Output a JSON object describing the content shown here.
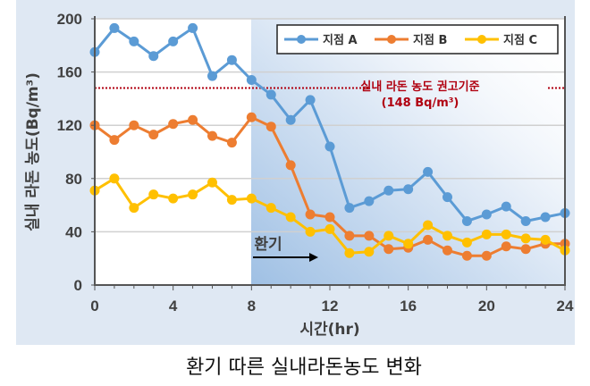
{
  "chart_data": {
    "type": "line",
    "title": "",
    "caption": "환기 따른 실내라돈농도 변화",
    "xlabel": "시간(hr)",
    "ylabel": "실내 라돈 농도(Bq/m³)",
    "xlim": [
      0,
      24
    ],
    "ylim": [
      0,
      200
    ],
    "xticks": [
      0,
      4,
      8,
      12,
      16,
      20,
      24
    ],
    "yticks": [
      0,
      40,
      80,
      120,
      160,
      200
    ],
    "grid": true,
    "legend_position": "top-right",
    "x": [
      0,
      1,
      2,
      3,
      4,
      5,
      6,
      7,
      8,
      9,
      10,
      11,
      12,
      13,
      14,
      15,
      16,
      17,
      18,
      19,
      20,
      21,
      22,
      23,
      24
    ],
    "series": [
      {
        "name": "지점 A",
        "color": "#5b9bd5",
        "values": [
          175,
          193,
          183,
          172,
          183,
          193,
          157,
          169,
          154,
          143,
          124,
          139,
          104,
          58,
          63,
          71,
          72,
          85,
          66,
          48,
          53,
          59,
          48,
          51,
          54
        ]
      },
      {
        "name": "지점 B",
        "color": "#ed7d31",
        "values": [
          120,
          109,
          120,
          113,
          121,
          124,
          112,
          107,
          126,
          119,
          90,
          53,
          51,
          37,
          37,
          27,
          28,
          34,
          26,
          22,
          22,
          29,
          27,
          31,
          31
        ]
      },
      {
        "name": "지점 C",
        "color": "#ffc000",
        "values": [
          71,
          80,
          58,
          68,
          65,
          68,
          77,
          64,
          65,
          58,
          51,
          40,
          42,
          24,
          25,
          37,
          31,
          45,
          37,
          32,
          38,
          38,
          35,
          34,
          26
        ]
      }
    ],
    "reference_line": {
      "value": 148,
      "color": "#b00010",
      "label": "실내 라돈 농도 권고기준",
      "sublabel": "(148 Bq/m³)"
    },
    "annotation": {
      "label": "환기",
      "from_x": 8
    }
  }
}
